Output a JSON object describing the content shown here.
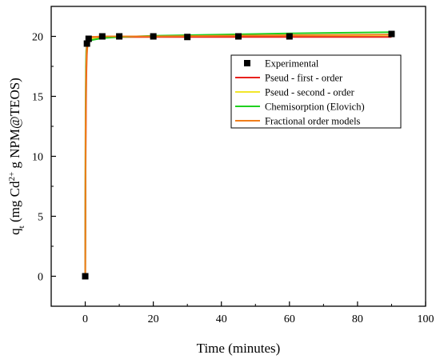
{
  "chart_data": {
    "type": "line",
    "xlabel": "Time (minutes)",
    "ylabel": {
      "prefix": "q",
      "sub": "t",
      "mid": " (mg Cd",
      "sup": "2+",
      "suffix": " g NPM@TEOS)"
    },
    "xlim": [
      -10,
      100
    ],
    "ylim": [
      -2.5,
      22.5
    ],
    "xticks": [
      0,
      20,
      40,
      60,
      80,
      100
    ],
    "yticks": [
      0,
      5,
      10,
      15,
      20
    ],
    "grid": false,
    "legend_position": "upper-right",
    "series": [
      {
        "name": "Experimental",
        "kind": "scatter",
        "color": "#000000",
        "x": [
          0,
          0.5,
          1,
          5,
          10,
          20,
          30,
          45,
          60,
          90
        ],
        "y": [
          0,
          19.4,
          19.8,
          20.0,
          20.0,
          20.0,
          19.95,
          20.0,
          20.0,
          20.2
        ]
      },
      {
        "name": "Pseud - first - order",
        "kind": "line",
        "color": "#e8211d",
        "x": [
          0,
          0.1,
          0.2,
          0.3,
          0.4,
          0.5,
          0.7,
          1,
          2,
          3,
          5,
          10,
          20,
          40,
          60,
          90
        ],
        "y": [
          0,
          8.6,
          13.5,
          16.3,
          17.9,
          18.8,
          19.6,
          19.9,
          19.95,
          19.95,
          19.95,
          19.95,
          19.95,
          19.95,
          19.95,
          19.95
        ]
      },
      {
        "name": "Pseud - second - order",
        "kind": "line",
        "color": "#f2e62a",
        "x": [
          0,
          0.1,
          0.2,
          0.3,
          0.4,
          0.5,
          0.7,
          1,
          2,
          3,
          5,
          10,
          20,
          40,
          60,
          90
        ],
        "y": [
          0,
          10.5,
          14.8,
          16.9,
          18.0,
          18.6,
          19.2,
          19.5,
          19.8,
          19.85,
          19.9,
          19.95,
          19.97,
          19.98,
          19.99,
          20.0
        ]
      },
      {
        "name": "Chemisorption (Elovich)",
        "kind": "line",
        "color": "#1fd01f",
        "x": [
          0,
          0.1,
          0.2,
          0.3,
          0.5,
          1,
          2,
          5,
          10,
          20,
          40,
          60,
          90
        ],
        "y": [
          0,
          14.0,
          17.5,
          18.8,
          19.3,
          19.6,
          19.7,
          19.85,
          19.95,
          20.05,
          20.15,
          20.25,
          20.35
        ]
      },
      {
        "name": "Fractional order models",
        "kind": "line",
        "color": "#f07d1a",
        "x": [
          0,
          0.1,
          0.2,
          0.3,
          0.4,
          0.5,
          0.7,
          1,
          2,
          5,
          10,
          20,
          40,
          60,
          90
        ],
        "y": [
          0,
          12.0,
          16.0,
          17.8,
          18.8,
          19.3,
          19.7,
          19.85,
          19.95,
          20.0,
          20.0,
          20.0,
          20.05,
          20.1,
          20.15
        ]
      }
    ]
  }
}
